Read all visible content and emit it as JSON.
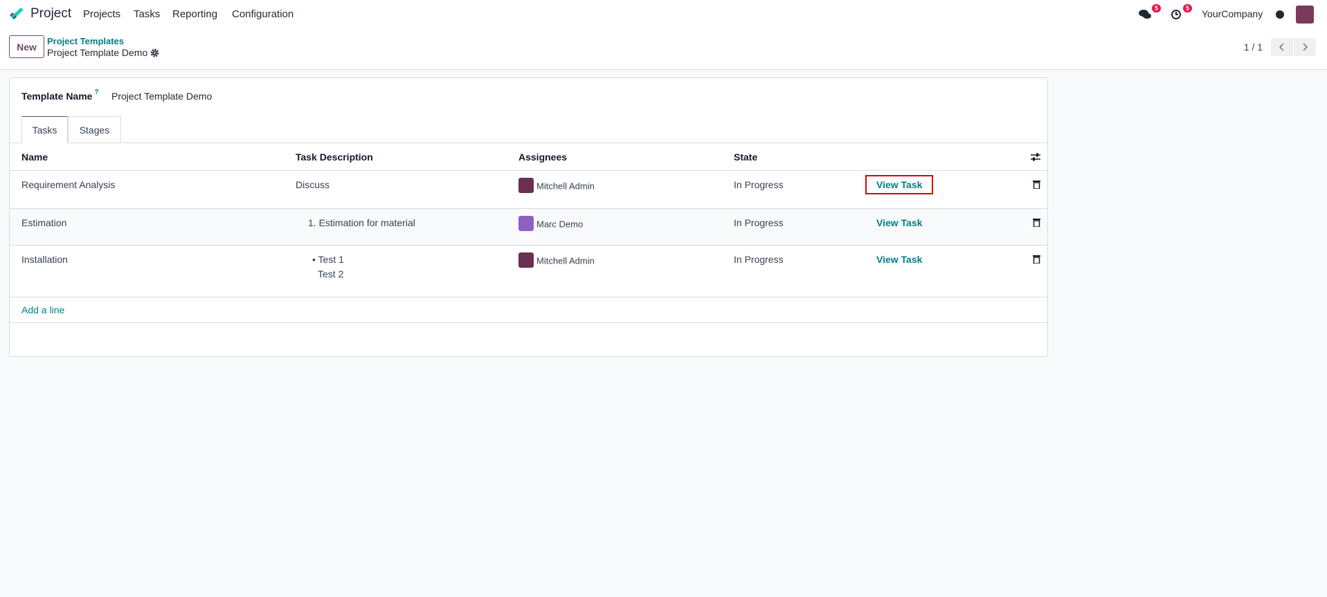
{
  "navbar": {
    "app_name": "Project",
    "menu": [
      "Projects",
      "Tasks",
      "Reporting",
      "Configuration"
    ],
    "messages_badge": "5",
    "activities_badge": "5",
    "company": "YourCompany"
  },
  "control": {
    "new_label": "New",
    "breadcrumb_parent": "Project Templates",
    "breadcrumb_current": "Project Template Demo",
    "pager": "1 / 1"
  },
  "form": {
    "template_name_label": "Template Name",
    "template_name_help": "?",
    "template_name_value": "Project Template Demo",
    "tabs": [
      "Tasks",
      "Stages"
    ],
    "columns": [
      "Name",
      "Task Description",
      "Assignees",
      "State"
    ],
    "rows": [
      {
        "name": "Requirement Analysis",
        "description": [
          "Discuss"
        ],
        "assignee": "Mitchell Admin",
        "state": "In Progress",
        "action": "View Task"
      },
      {
        "name": "Estimation",
        "description": [
          "1. Estimation for material"
        ],
        "assignee": "Marc Demo",
        "state": "In Progress",
        "action": "View Task"
      },
      {
        "name": "Installation",
        "description": [
          "• Test 1",
          "Test 2"
        ],
        "assignee": "Mitchell Admin",
        "state": "In Progress",
        "action": "View Task"
      }
    ],
    "add_line": "Add a line"
  },
  "colors": {
    "brand": "#714b67",
    "link": "#017e84",
    "highlight": "#e00000",
    "badge": "#e6154a"
  }
}
